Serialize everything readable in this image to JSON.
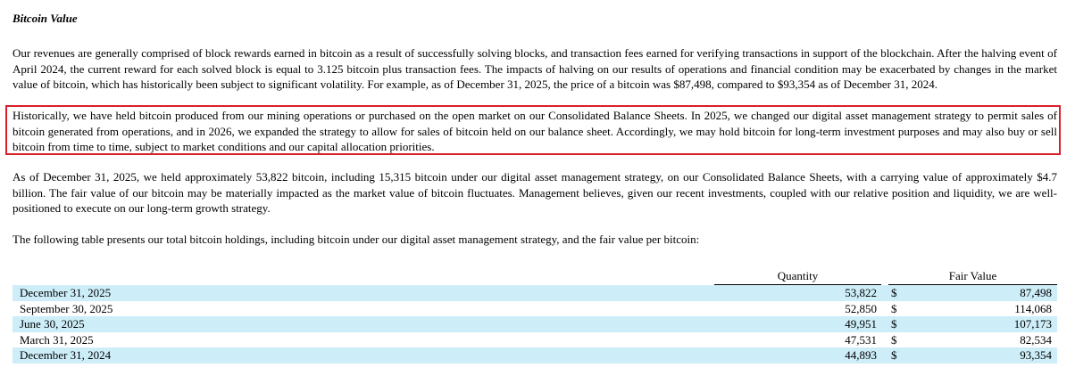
{
  "title": "Bitcoin Value",
  "paragraphs": [
    "Our revenues are generally comprised of block rewards earned in bitcoin as a result of successfully solving blocks, and transaction fees earned for verifying transactions in support of the blockchain. After the halving event of April 2024, the current reward for each solved block is equal to 3.125 bitcoin plus transaction fees. The impacts of halving on our results of operations and financial condition may be exacerbated by changes in the market value of bitcoin, which has historically been subject to significant volatility. For example, as of December 31, 2025, the price of a bitcoin was $87,498, compared to $93,354 as of December 31, 2024.",
    "Historically, we have held bitcoin produced from our mining operations or purchased on the open market on our Consolidated Balance Sheets. In 2025, we changed our digital asset management strategy to permit sales of bitcoin generated from operations, and in 2026, we expanded the strategy to allow for sales of bitcoin held on our balance sheet. Accordingly, we may hold bitcoin for long-term investment purposes and may also buy or sell bitcoin from time to time, subject to market conditions and our capital allocation priorities.",
    "As of December 31, 2025, we held approximately 53,822 bitcoin, including 15,315 bitcoin under our digital asset management strategy, on our Consolidated Balance Sheets, with a carrying value of approximately $4.7 billion. The fair value of our bitcoin may be materially impacted as the market value of bitcoin fluctuates. Management believes, given our recent investments, coupled with our relative position and liquidity, we are well-positioned to execute on our long-term growth strategy.",
    "The following table presents our total bitcoin holdings, including bitcoin under our digital asset management strategy, and the fair value per bitcoin:"
  ],
  "table": {
    "headers": [
      "Quantity",
      "Fair Value"
    ],
    "rows": [
      [
        "December 31, 2025",
        "53,822",
        "$",
        "87,498"
      ],
      [
        "September 30, 2025",
        "52,850",
        "$",
        "114,068"
      ],
      [
        "June 30, 2025",
        "49,951",
        "$",
        "107,173"
      ],
      [
        "March 31, 2025",
        "47,531",
        "$",
        "82,534"
      ],
      [
        "December 31, 2024",
        "44,893",
        "$",
        "93,354"
      ]
    ]
  }
}
